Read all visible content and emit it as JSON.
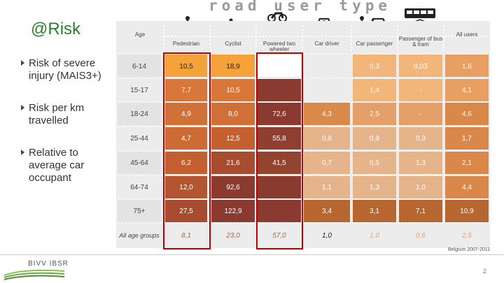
{
  "slide": {
    "title": "@Risk",
    "bullets": [
      "Risk of severe injury (MAIS3+)",
      "Risk per km travelled",
      "Relative to average car occupant"
    ],
    "road_user_type": "road user type",
    "source": "Belgium 2007-2011",
    "page_number": "2",
    "logo": "BIVV IBSR"
  },
  "table": {
    "age_header": "Age",
    "columns": [
      "Pedestrian",
      "Cyclist",
      "Powered two wheeler",
      "Car driver",
      "Car passenger",
      "Passenger of bus & tram",
      "All users"
    ],
    "rows": [
      {
        "age": "6-14",
        "cells": [
          "10,5",
          "18,9",
          "",
          "",
          "0,3",
          "0,03",
          "1,6"
        ]
      },
      {
        "age": "15-17",
        "cells": [
          "7,7",
          "10,5",
          "",
          "",
          "1,4",
          "-",
          "4,1"
        ]
      },
      {
        "age": "18-24",
        "cells": [
          "4,9",
          "8,0",
          "72,6",
          "4,3",
          "2,5",
          "-",
          "4,6"
        ]
      },
      {
        "age": "25-44",
        "cells": [
          "4,7",
          "12,5",
          "55,8",
          "0,8",
          "0,9",
          "0,3",
          "1,7"
        ]
      },
      {
        "age": "45-64",
        "cells": [
          "6,2",
          "21,6",
          "41,5",
          "0,7",
          "0,5",
          "1,3",
          "2,1"
        ]
      },
      {
        "age": "64-74",
        "cells": [
          "12,0",
          "92,6",
          "",
          "1,1",
          "1,3",
          "1,0",
          "4,4"
        ]
      },
      {
        "age": "75+",
        "cells": [
          "27,5",
          "122,9",
          "",
          "3,4",
          "3,1",
          "7,1",
          "10,9"
        ]
      },
      {
        "age": "All age groups",
        "cells": [
          "8,1",
          "23,0",
          "57,0",
          "1,0",
          "1,0",
          "0,6",
          "2,5"
        ]
      }
    ]
  },
  "colors": {
    "title": "#2a7f2a",
    "highlight_box": "#c00000"
  }
}
